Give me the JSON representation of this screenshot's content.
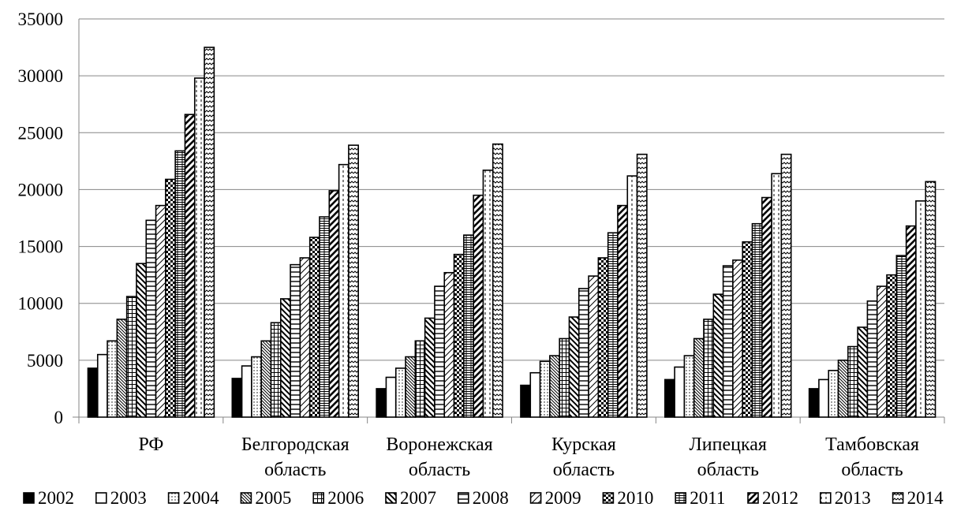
{
  "chart_data": {
    "type": "bar",
    "title": "",
    "xlabel": "",
    "ylabel": "",
    "ylim": [
      0,
      35000
    ],
    "yticks": [
      0,
      5000,
      10000,
      15000,
      20000,
      25000,
      30000,
      35000
    ],
    "grid": true,
    "legend_position": "bottom",
    "categories": [
      [
        "РФ"
      ],
      [
        "Белгородская",
        "область"
      ],
      [
        "Воронежская",
        "область"
      ],
      [
        "Курская",
        "область"
      ],
      [
        "Липецкая",
        "область"
      ],
      [
        "Тамбовская",
        "область"
      ]
    ],
    "series": [
      {
        "name": "2002",
        "values": [
          4300,
          3400,
          2500,
          2800,
          3300,
          2500
        ]
      },
      {
        "name": "2003",
        "values": [
          5500,
          4500,
          3500,
          3900,
          4400,
          3300
        ]
      },
      {
        "name": "2004",
        "values": [
          6700,
          5300,
          4300,
          4900,
          5400,
          4100
        ]
      },
      {
        "name": "2005",
        "values": [
          8600,
          6700,
          5300,
          5400,
          6900,
          5000
        ]
      },
      {
        "name": "2006",
        "values": [
          10600,
          8300,
          6700,
          6900,
          8600,
          6200
        ]
      },
      {
        "name": "2007",
        "values": [
          13500,
          10400,
          8700,
          8800,
          10800,
          7900
        ]
      },
      {
        "name": "2008",
        "values": [
          17300,
          13400,
          11500,
          11300,
          13300,
          10200
        ]
      },
      {
        "name": "2009",
        "values": [
          18600,
          14000,
          12700,
          12400,
          13800,
          11500
        ]
      },
      {
        "name": "2010",
        "values": [
          20900,
          15800,
          14300,
          14000,
          15400,
          12500
        ]
      },
      {
        "name": "2011",
        "values": [
          23400,
          17600,
          16000,
          16200,
          17000,
          14200
        ]
      },
      {
        "name": "2012",
        "values": [
          26600,
          19900,
          19500,
          18600,
          19300,
          16800
        ]
      },
      {
        "name": "2013",
        "values": [
          29800,
          22200,
          21700,
          21200,
          21400,
          19000
        ]
      },
      {
        "name": "2014",
        "values": [
          32500,
          23900,
          24000,
          23100,
          23100,
          20700
        ]
      }
    ]
  }
}
